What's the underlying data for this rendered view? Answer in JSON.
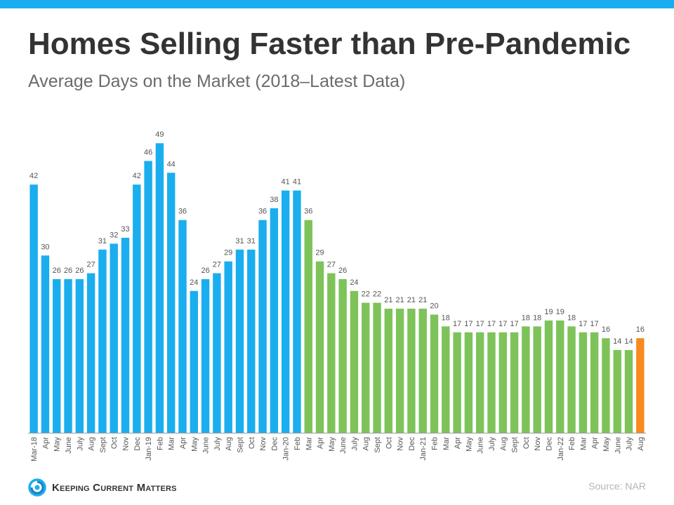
{
  "header": {
    "title": "Homes Selling Faster than Pre-Pandemic",
    "subtitle": "Average Days on the Market (2018–Latest Data)"
  },
  "footer": {
    "logo_text": "Keeping Current Matters",
    "source": "Source: NAR"
  },
  "colors": {
    "accent_bar": "#1aaeef",
    "blue": "#1aaeef",
    "green": "#7dc35a",
    "orange": "#f7891f",
    "label": "#555555",
    "axis": "#9a9a9a"
  },
  "chart_data": {
    "type": "bar",
    "title": "Homes Selling Faster than Pre-Pandemic",
    "subtitle": "Average Days on the Market (2018–Latest Data)",
    "ylim": [
      0,
      52
    ],
    "grid": false,
    "categories": [
      "Mar-18",
      "Apr",
      "May",
      "June",
      "July",
      "Aug",
      "Sept",
      "Oct",
      "Nov",
      "Dec",
      "Jan-19",
      "Feb",
      "Mar",
      "Apr",
      "May",
      "June",
      "July",
      "Aug",
      "Sept",
      "Oct",
      "Nov",
      "Dec",
      "Jan-20",
      "Feb",
      "Mar",
      "Apr",
      "May",
      "June",
      "July",
      "Aug",
      "Sept",
      "Oct",
      "Nov",
      "Dec",
      "Jan-21",
      "Feb",
      "Mar",
      "Apr",
      "May",
      "June",
      "July",
      "Aug",
      "Sept",
      "Oct",
      "Nov",
      "Dec",
      "Jan-22",
      "Feb",
      "Mar",
      "Apr",
      "May",
      "June",
      "July",
      "Aug"
    ],
    "values": [
      42,
      30,
      26,
      26,
      26,
      27,
      31,
      32,
      33,
      42,
      46,
      49,
      44,
      36,
      24,
      26,
      27,
      29,
      31,
      31,
      36,
      38,
      41,
      41,
      36,
      29,
      27,
      26,
      24,
      22,
      22,
      21,
      21,
      21,
      21,
      20,
      18,
      17,
      17,
      17,
      17,
      17,
      17,
      18,
      18,
      19,
      19,
      18,
      17,
      17,
      16,
      14,
      14,
      16
    ],
    "color_groups": {
      "blue": [
        0,
        23
      ],
      "green": [
        24,
        52
      ],
      "orange": [
        53,
        53
      ]
    }
  }
}
